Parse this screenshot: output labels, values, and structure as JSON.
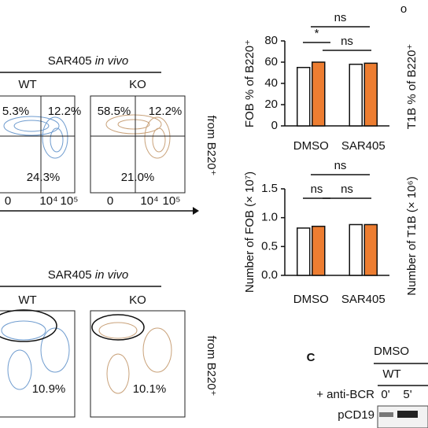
{
  "flow_top": {
    "title": "SAR405",
    "title_italic": "in vivo",
    "groups": [
      "WT",
      "KO"
    ],
    "wt_gates": [
      "5.3%",
      "12.2%",
      "24.3%"
    ],
    "ko_gates": [
      "58.5%",
      "12.2%",
      "21.0%"
    ],
    "side_label": "from B220⁺",
    "wt_axis": [
      "0",
      "10⁴",
      "10⁵"
    ],
    "ko_axis": [
      "0",
      "10⁴",
      "10⁵"
    ]
  },
  "flow_bottom": {
    "title": "SAR405",
    "title_italic": "in vivo",
    "groups": [
      "WT",
      "KO"
    ],
    "wt_gate": "10.9%",
    "ko_gate": "10.1%",
    "side_label": "from B220⁺"
  },
  "chart_data": [
    {
      "type": "bar",
      "ylabel": "FOB % of B220⁺",
      "categories": [
        "DMSO",
        "SAR405"
      ],
      "series": [
        {
          "color": "#ffffff",
          "values": [
            55,
            58
          ]
        },
        {
          "color": "#ed7d31",
          "values": [
            60,
            59
          ]
        }
      ],
      "ylim": [
        0,
        80
      ],
      "yticks": [
        0,
        20,
        40,
        60,
        80
      ],
      "annotations": [
        "ns",
        "*",
        "ns"
      ]
    },
    {
      "type": "bar",
      "ylabel": "Number of FOB (× 10⁷)",
      "categories": [
        "DMSO",
        "SAR405"
      ],
      "series": [
        {
          "color": "#ffffff",
          "values": [
            0.82,
            0.88
          ]
        },
        {
          "color": "#ed7d31",
          "values": [
            0.85,
            0.88
          ]
        }
      ],
      "ylim": [
        0,
        1.5
      ],
      "yticks": [
        {
          "value": 0,
          "label": "0.0"
        },
        0.5,
        {
          "value": 1,
          "label": "1.0"
        },
        1.5
      ],
      "annotations": [
        "ns",
        "ns",
        "ns"
      ]
    }
  ],
  "right_cut": {
    "dot": "o",
    "top_label": "T1B % of B220⁺",
    "bottom_label": "Number of T1B (× 10⁶)"
  },
  "blot": {
    "panel": "C",
    "treatment": "DMSO",
    "genotype": "WT",
    "stim": "+ anti-BCR",
    "times": [
      "0'",
      "5'"
    ],
    "protein": "pCD19"
  }
}
